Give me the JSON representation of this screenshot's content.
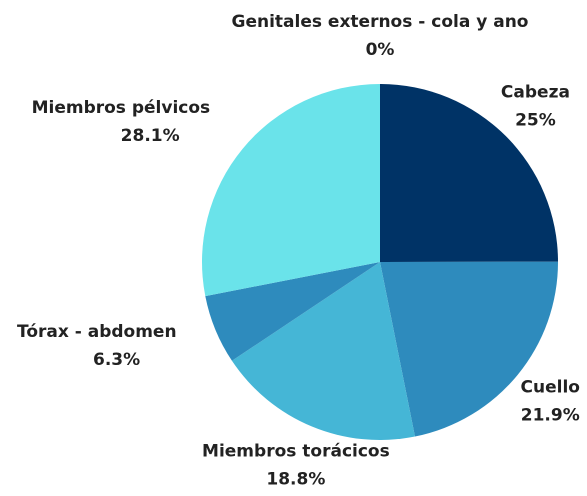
{
  "chart_data": {
    "type": "pie",
    "categories": [
      "Cabeza",
      "Cuello",
      "Miembros torácicos",
      "Tórax - abdomen",
      "Miembros pélvicos",
      "Genitales externos - cola y ano"
    ],
    "values": [
      25,
      21.9,
      18.8,
      6.3,
      28.1,
      0
    ],
    "value_labels": [
      "25%",
      "21.9%",
      "18.8%",
      "6.3%",
      "28.1%",
      "0%"
    ],
    "colors": [
      "#003366",
      "#2e8bbd",
      "#45b6d6",
      "#2e8bbd",
      "#6ae3ea",
      "#003366"
    ]
  }
}
